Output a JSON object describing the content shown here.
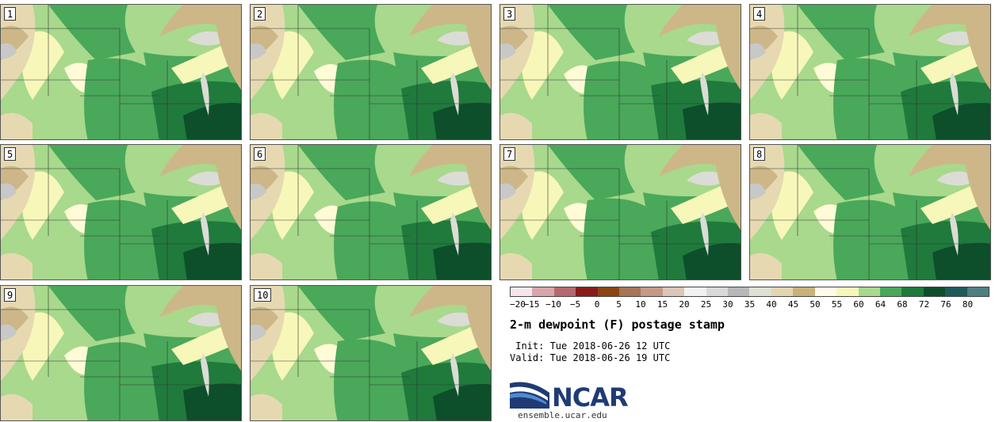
{
  "panels": [
    {
      "label": "1"
    },
    {
      "label": "2"
    },
    {
      "label": "3"
    },
    {
      "label": "4"
    },
    {
      "label": "5"
    },
    {
      "label": "6"
    },
    {
      "label": "7"
    },
    {
      "label": "8"
    },
    {
      "label": "9"
    },
    {
      "label": "10"
    }
  ],
  "colorbar": {
    "colors": [
      "#f5e6ea",
      "#d8a6ab",
      "#b46a6f",
      "#8b1a1a",
      "#8b4513",
      "#a87456",
      "#c49a86",
      "#dcc6b8",
      "#f2f2f2",
      "#d9d9d9",
      "#b8b8b8",
      "#e0e0d2",
      "#e2d6b0",
      "#c9b27a",
      "#fffbe6",
      "#f7f7b9",
      "#a8d98c",
      "#4aa85a",
      "#1f7a3c",
      "#0c4f2a",
      "#1e5a5a",
      "#4d8080"
    ],
    "ticks": [
      "−20",
      "−15",
      "−10",
      "−5",
      "0",
      "5",
      "10",
      "15",
      "20",
      "25",
      "30",
      "35",
      "40",
      "45",
      "50",
      "55",
      "60",
      "64",
      "68",
      "72",
      "76",
      "80"
    ]
  },
  "title": "2-m dewpoint (F) postage stamp",
  "init": " Init: Tue 2018-06-26 12 UTC",
  "valid": "Valid: Tue 2018-06-26 19 UTC",
  "logo_text": "NCAR",
  "site": "ensemble.ucar.edu",
  "map_colors": {
    "tan": "#cdb788",
    "beige": "#e6d9b1",
    "gray": "#c8c8c8",
    "lake": "#dcdcd6",
    "cream": "#fffbd6",
    "yellow": "#f7f7b9",
    "light_green": "#a8d98c",
    "green": "#4aa85a",
    "dark_green": "#1f7a3c",
    "darkest": "#0c4f2a"
  }
}
